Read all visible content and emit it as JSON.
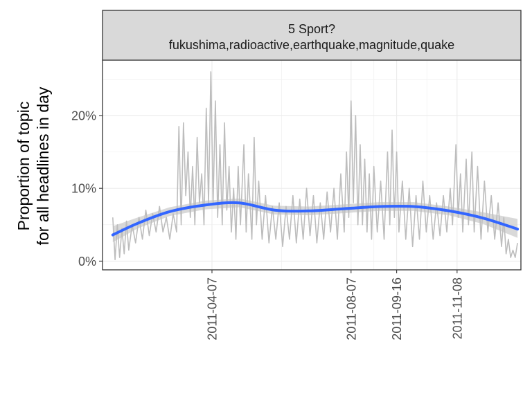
{
  "chart_data": {
    "type": "line",
    "facet_title_line1": "5 Sport?",
    "facet_title_line2": "fukushima,radioactive,earthquake,magnitude,quake",
    "ylabel_line1": "Proportion of topic",
    "ylabel_line2": "for all headlines in day",
    "xlabel": "",
    "y_ticks": [
      {
        "value": 0,
        "label": "0%"
      },
      {
        "value": 10,
        "label": "10%"
      },
      {
        "value": 20,
        "label": "20%"
      }
    ],
    "x_ticks": [
      {
        "date": "2011-04-07",
        "label": "2011-04-07"
      },
      {
        "date": "2011-08-07",
        "label": "2011-08-07"
      },
      {
        "date": "2011-09-16",
        "label": "2011-09-16"
      },
      {
        "date": "2011-11-08",
        "label": "2011-11-08"
      }
    ],
    "xlim": [
      "2011-01-01",
      "2012-01-03"
    ],
    "ylim": [
      -1.2,
      27.6
    ],
    "grid": true,
    "series": [
      {
        "kind": "raw",
        "color": "#bdbdbd",
        "points": [
          [
            "2011-01-10",
            6.0
          ],
          [
            "2011-01-12",
            0.2
          ],
          [
            "2011-01-14",
            5.0
          ],
          [
            "2011-01-16",
            0.5
          ],
          [
            "2011-01-18",
            4.5
          ],
          [
            "2011-01-20",
            1.0
          ],
          [
            "2011-01-22",
            5.5
          ],
          [
            "2011-01-24",
            1.5
          ],
          [
            "2011-01-27",
            5.0
          ],
          [
            "2011-01-30",
            2.5
          ],
          [
            "2011-02-02",
            6.0
          ],
          [
            "2011-02-05",
            3.0
          ],
          [
            "2011-02-08",
            7.0
          ],
          [
            "2011-02-11",
            3.5
          ],
          [
            "2011-02-14",
            6.5
          ],
          [
            "2011-02-17",
            4.0
          ],
          [
            "2011-02-20",
            7.5
          ],
          [
            "2011-02-23",
            4.0
          ],
          [
            "2011-02-26",
            6.0
          ],
          [
            "2011-03-01",
            3.0
          ],
          [
            "2011-03-04",
            6.5
          ],
          [
            "2011-03-07",
            4.0
          ],
          [
            "2011-03-09",
            18.5
          ],
          [
            "2011-03-11",
            5.0
          ],
          [
            "2011-03-13",
            19.0
          ],
          [
            "2011-03-15",
            9.0
          ],
          [
            "2011-03-17",
            15.0
          ],
          [
            "2011-03-19",
            6.0
          ],
          [
            "2011-03-21",
            13.0
          ],
          [
            "2011-03-23",
            5.0
          ],
          [
            "2011-03-25",
            17.0
          ],
          [
            "2011-03-27",
            8.0
          ],
          [
            "2011-03-29",
            12.0
          ],
          [
            "2011-03-31",
            5.0
          ],
          [
            "2011-04-02",
            21.0
          ],
          [
            "2011-04-04",
            8.0
          ],
          [
            "2011-04-06",
            26.0
          ],
          [
            "2011-04-08",
            8.0
          ],
          [
            "2011-04-10",
            22.0
          ],
          [
            "2011-04-12",
            6.0
          ],
          [
            "2011-04-14",
            16.0
          ],
          [
            "2011-04-16",
            5.0
          ],
          [
            "2011-04-18",
            19.0
          ],
          [
            "2011-04-20",
            7.0
          ],
          [
            "2011-04-22",
            13.0
          ],
          [
            "2011-04-24",
            4.0
          ],
          [
            "2011-04-26",
            10.0
          ],
          [
            "2011-04-28",
            3.0
          ],
          [
            "2011-04-30",
            13.0
          ],
          [
            "2011-05-02",
            5.0
          ],
          [
            "2011-05-05",
            16.0
          ],
          [
            "2011-05-07",
            4.0
          ],
          [
            "2011-05-09",
            12.0
          ],
          [
            "2011-05-12",
            3.0
          ],
          [
            "2011-05-14",
            17.0
          ],
          [
            "2011-05-16",
            5.0
          ],
          [
            "2011-05-18",
            11.0
          ],
          [
            "2011-05-21",
            3.0
          ],
          [
            "2011-05-24",
            9.0
          ],
          [
            "2011-05-27",
            2.5
          ],
          [
            "2011-05-30",
            7.5
          ],
          [
            "2011-06-02",
            3.0
          ],
          [
            "2011-06-05",
            8.0
          ],
          [
            "2011-06-08",
            2.0
          ],
          [
            "2011-06-11",
            7.5
          ],
          [
            "2011-06-14",
            3.0
          ],
          [
            "2011-06-17",
            9.0
          ],
          [
            "2011-06-20",
            2.5
          ],
          [
            "2011-06-23",
            8.5
          ],
          [
            "2011-06-26",
            3.0
          ],
          [
            "2011-06-29",
            10.0
          ],
          [
            "2011-07-02",
            3.5
          ],
          [
            "2011-07-05",
            9.0
          ],
          [
            "2011-07-08",
            2.5
          ],
          [
            "2011-07-11",
            8.0
          ],
          [
            "2011-07-14",
            3.0
          ],
          [
            "2011-07-17",
            9.5
          ],
          [
            "2011-07-20",
            4.0
          ],
          [
            "2011-07-23",
            10.0
          ],
          [
            "2011-07-26",
            3.0
          ],
          [
            "2011-07-29",
            12.0
          ],
          [
            "2011-08-01",
            4.0
          ],
          [
            "2011-08-03",
            15.0
          ],
          [
            "2011-08-05",
            6.0
          ],
          [
            "2011-08-07",
            22.0
          ],
          [
            "2011-08-09",
            8.0
          ],
          [
            "2011-08-11",
            20.0
          ],
          [
            "2011-08-13",
            5.0
          ],
          [
            "2011-08-15",
            16.0
          ],
          [
            "2011-08-17",
            5.0
          ],
          [
            "2011-08-19",
            14.0
          ],
          [
            "2011-08-21",
            4.0
          ],
          [
            "2011-08-23",
            12.0
          ],
          [
            "2011-08-25",
            3.0
          ],
          [
            "2011-08-27",
            13.0
          ],
          [
            "2011-08-30",
            4.0
          ],
          [
            "2011-09-02",
            11.0
          ],
          [
            "2011-09-05",
            3.0
          ],
          [
            "2011-09-08",
            15.0
          ],
          [
            "2011-09-10",
            5.0
          ],
          [
            "2011-09-12",
            18.0
          ],
          [
            "2011-09-14",
            6.0
          ],
          [
            "2011-09-16",
            15.0
          ],
          [
            "2011-09-18",
            4.0
          ],
          [
            "2011-09-21",
            11.0
          ],
          [
            "2011-09-24",
            3.0
          ],
          [
            "2011-09-27",
            10.0
          ],
          [
            "2011-09-30",
            2.0
          ],
          [
            "2011-10-03",
            9.0
          ],
          [
            "2011-10-06",
            3.0
          ],
          [
            "2011-10-09",
            11.0
          ],
          [
            "2011-10-12",
            4.0
          ],
          [
            "2011-10-15",
            9.0
          ],
          [
            "2011-10-18",
            3.0
          ],
          [
            "2011-10-21",
            8.0
          ],
          [
            "2011-10-24",
            3.5
          ],
          [
            "2011-10-27",
            9.0
          ],
          [
            "2011-10-30",
            4.0
          ],
          [
            "2011-11-02",
            10.0
          ],
          [
            "2011-11-04",
            5.0
          ],
          [
            "2011-11-07",
            16.0
          ],
          [
            "2011-11-09",
            6.0
          ],
          [
            "2011-11-11",
            12.0
          ],
          [
            "2011-11-13",
            4.0
          ],
          [
            "2011-11-16",
            14.0
          ],
          [
            "2011-11-18",
            5.0
          ],
          [
            "2011-11-21",
            15.0
          ],
          [
            "2011-11-23",
            4.0
          ],
          [
            "2011-11-26",
            13.0
          ],
          [
            "2011-11-29",
            3.0
          ],
          [
            "2011-12-02",
            11.0
          ],
          [
            "2011-12-05",
            4.0
          ],
          [
            "2011-12-08",
            9.0
          ],
          [
            "2011-12-11",
            3.0
          ],
          [
            "2011-12-14",
            8.0
          ],
          [
            "2011-12-17",
            2.0
          ],
          [
            "2011-12-19",
            6.0
          ],
          [
            "2011-12-21",
            1.0
          ],
          [
            "2011-12-23",
            3.0
          ],
          [
            "2011-12-25",
            0.5
          ],
          [
            "2011-12-27",
            1.5
          ],
          [
            "2011-12-29",
            0.5
          ],
          [
            "2011-12-31",
            2.5
          ]
        ]
      },
      {
        "kind": "smooth",
        "color": "#3366ff",
        "band_color": "#cccccc",
        "points": [
          [
            "2011-01-10",
            3.6,
            2.6,
            4.8
          ],
          [
            "2011-02-01",
            5.2,
            4.5,
            6.0
          ],
          [
            "2011-03-01",
            6.8,
            6.2,
            7.4
          ],
          [
            "2011-04-01",
            7.7,
            7.1,
            8.3
          ],
          [
            "2011-05-01",
            8.0,
            7.4,
            8.6
          ],
          [
            "2011-06-01",
            7.0,
            6.4,
            7.6
          ],
          [
            "2011-07-01",
            6.9,
            6.3,
            7.5
          ],
          [
            "2011-08-01",
            7.2,
            6.6,
            7.8
          ],
          [
            "2011-09-01",
            7.5,
            6.9,
            8.1
          ],
          [
            "2011-10-01",
            7.5,
            6.9,
            8.1
          ],
          [
            "2011-11-01",
            6.9,
            6.3,
            7.5
          ],
          [
            "2011-12-01",
            5.9,
            5.1,
            6.7
          ],
          [
            "2011-12-31",
            4.4,
            3.2,
            5.8
          ]
        ]
      }
    ]
  }
}
